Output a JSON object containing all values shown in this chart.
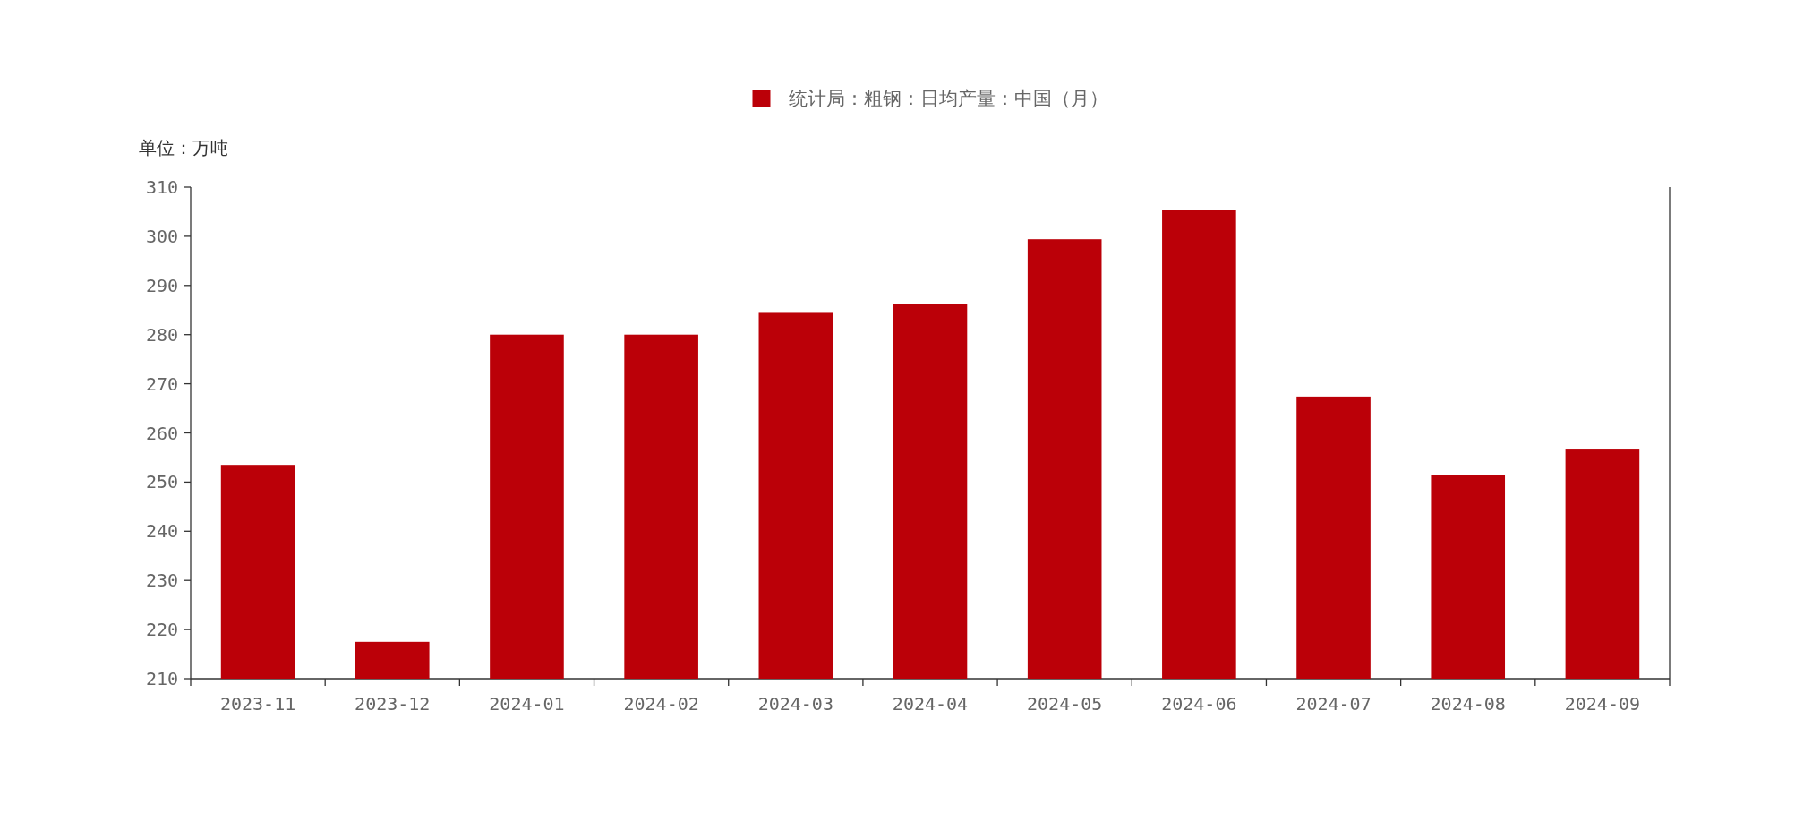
{
  "chart_data": {
    "type": "bar",
    "ylabel": "单位：万吨",
    "legend": "top",
    "categories": [
      "2023-11",
      "2023-12",
      "2024-01",
      "2024-02",
      "2024-03",
      "2024-04",
      "2024-05",
      "2024-06",
      "2024-07",
      "2024-08",
      "2024-09"
    ],
    "series": [
      {
        "name": "统计局：粗钢：日均产量：中国（月）",
        "color": "#bb0008",
        "values": [
          253.5,
          217.5,
          280,
          280,
          284.6,
          286.2,
          299.4,
          305.3,
          267.4,
          251.4,
          256.8
        ]
      }
    ],
    "ylim": [
      210,
      310
    ],
    "yticks": [
      210,
      220,
      230,
      240,
      250,
      260,
      270,
      280,
      290,
      300,
      310
    ]
  }
}
